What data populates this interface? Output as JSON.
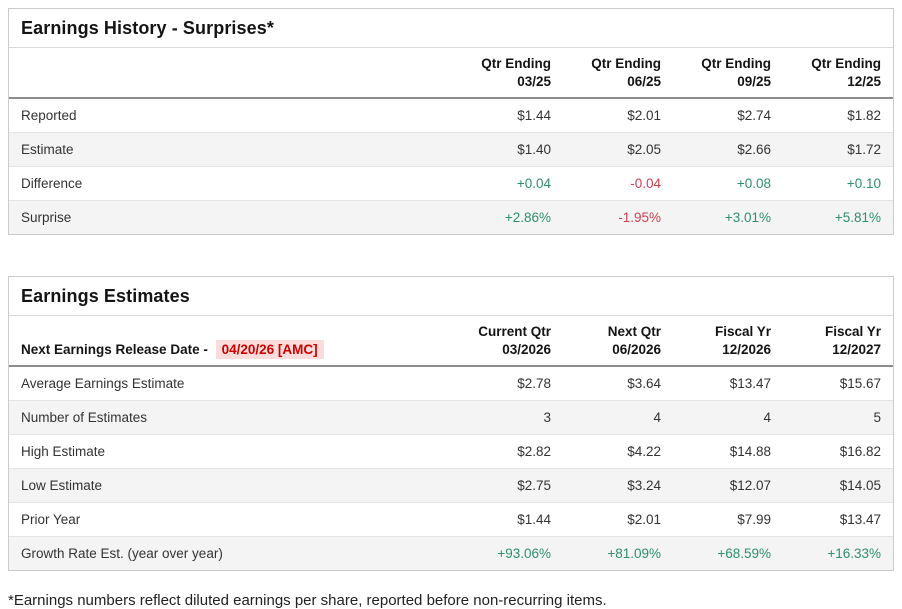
{
  "colors": {
    "positive": "#2e8f6e",
    "negative": "#cf4150",
    "release_date_text": "#cc0000",
    "release_date_bg": "#fbdcdc",
    "row_stripe": "#f4f4f4",
    "border": "#cbcbcb"
  },
  "history": {
    "title": "Earnings History - Surprises*",
    "columns": [
      {
        "line1": "Qtr Ending",
        "line2": "03/25"
      },
      {
        "line1": "Qtr Ending",
        "line2": "06/25"
      },
      {
        "line1": "Qtr Ending",
        "line2": "09/25"
      },
      {
        "line1": "Qtr Ending",
        "line2": "12/25"
      }
    ],
    "rows": [
      {
        "label": "Reported",
        "cells": [
          "$1.44",
          "$2.01",
          "$2.74",
          "$1.82"
        ]
      },
      {
        "label": "Estimate",
        "cells": [
          "$1.40",
          "$2.05",
          "$2.66",
          "$1.72"
        ]
      },
      {
        "label": "Difference",
        "cells": [
          "+0.04",
          "-0.04",
          "+0.08",
          "+0.10"
        ]
      },
      {
        "label": "Surprise",
        "cells": [
          "+2.86%",
          "-1.95%",
          "+3.01%",
          "+5.81%"
        ]
      }
    ]
  },
  "estimates": {
    "title": "Earnings Estimates",
    "release_label": "Next Earnings Release Date -",
    "release_date": "04/20/26 [AMC]",
    "columns": [
      {
        "line1": "Current Qtr",
        "line2": "03/2026"
      },
      {
        "line1": "Next Qtr",
        "line2": "06/2026"
      },
      {
        "line1": "Fiscal Yr",
        "line2": "12/2026"
      },
      {
        "line1": "Fiscal Yr",
        "line2": "12/2027"
      }
    ],
    "rows": [
      {
        "label": "Average Earnings Estimate",
        "cells": [
          "$2.78",
          "$3.64",
          "$13.47",
          "$15.67"
        ]
      },
      {
        "label": "Number of Estimates",
        "cells": [
          "3",
          "4",
          "4",
          "5"
        ]
      },
      {
        "label": "High Estimate",
        "cells": [
          "$2.82",
          "$4.22",
          "$14.88",
          "$16.82"
        ]
      },
      {
        "label": "Low Estimate",
        "cells": [
          "$2.75",
          "$3.24",
          "$12.07",
          "$14.05"
        ]
      },
      {
        "label": "Prior Year",
        "cells": [
          "$1.44",
          "$2.01",
          "$7.99",
          "$13.47"
        ]
      },
      {
        "label": "Growth Rate Est. (year over year)",
        "cells": [
          "+93.06%",
          "+81.09%",
          "+68.59%",
          "+16.33%"
        ]
      }
    ]
  },
  "footnote": "*Earnings numbers reflect diluted earnings per share, reported before non-recurring items."
}
